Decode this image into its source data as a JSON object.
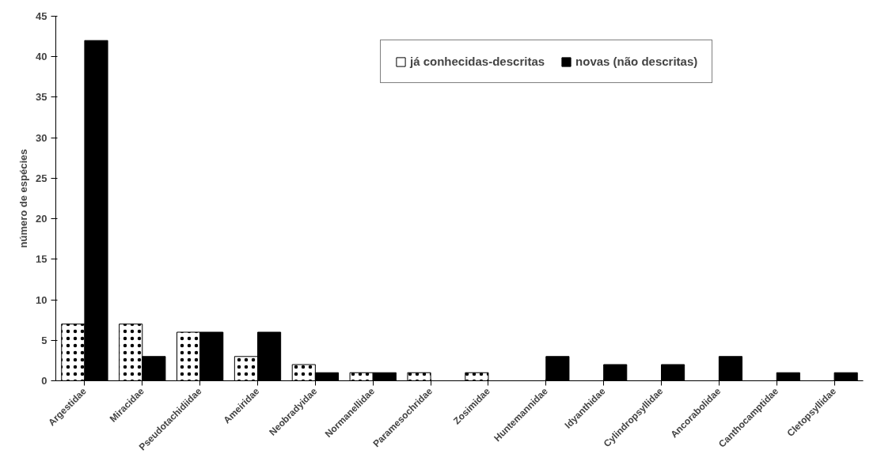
{
  "chart_data": {
    "type": "bar",
    "ylabel": "número de espécies",
    "categories": [
      "Argestidae",
      "Miracidae",
      "Pseudotachidiidae",
      "Ameiridae",
      "Neobradyidae",
      "Normanellidae",
      "Paramesochridae",
      "Zosimidae",
      "Huntemannidae",
      "Idyanthidae",
      "Cylindropsyllidae",
      "Ancorabolidae",
      "Canthocamptidae",
      "Cletopsyllidae"
    ],
    "series": [
      {
        "name": "já conhecidas-descritas",
        "color": "#ffffff",
        "values": [
          7,
          7,
          6,
          3,
          2,
          1,
          1,
          1,
          null,
          null,
          null,
          null,
          null,
          null
        ]
      },
      {
        "name": "novas (não descritas)",
        "color": "#000000",
        "values": [
          42,
          3,
          6,
          6,
          1,
          1,
          null,
          null,
          3,
          2,
          2,
          3,
          1,
          1
        ]
      }
    ],
    "ylim": [
      0,
      45
    ],
    "yticks": [
      0,
      5,
      10,
      15,
      20,
      25,
      30,
      35,
      40,
      45
    ],
    "grid": false,
    "legend": "top right"
  }
}
